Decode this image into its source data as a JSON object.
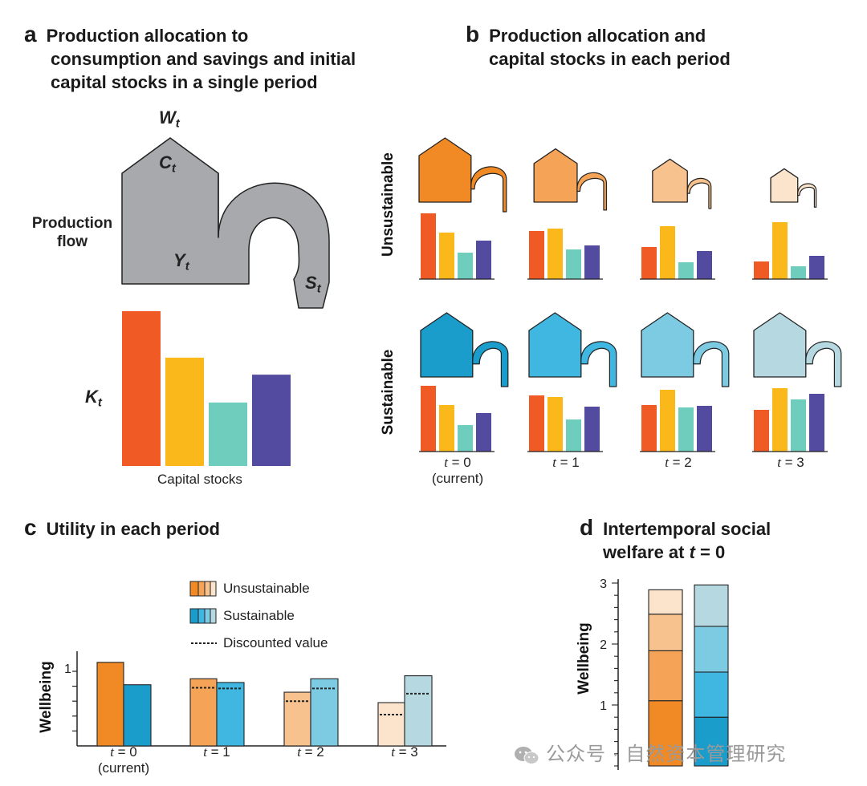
{
  "panel_a": {
    "letter": "a",
    "title_lines": [
      "Production allocation to",
      "consumption and savings and initial",
      "capital stocks in a single period"
    ],
    "labels": {
      "wellbeing_symbol": "W",
      "wellbeing_sub": "t",
      "consumption_symbol": "C",
      "consumption_sub": "t",
      "output_symbol": "Y",
      "output_sub": "t",
      "savings_symbol": "S",
      "savings_sub": "t",
      "capital_symbol": "K",
      "capital_sub": "t",
      "production_flow_line1": "Production",
      "production_flow_line2": "flow",
      "capital_stocks": "Capital stocks"
    },
    "capital_bars": [
      1.0,
      0.7,
      0.41,
      0.59
    ],
    "capital_colors": [
      "#F05A24",
      "#FBB81B",
      "#6FCDBD",
      "#524B9F"
    ]
  },
  "panel_b": {
    "letter": "b",
    "title_lines": [
      "Production allocation and",
      "capital stocks in each period"
    ],
    "row_labels": [
      "Unsustainable",
      "Sustainable"
    ],
    "periods": [
      {
        "t": "t",
        "eq": " = 0",
        "note": "(current)"
      },
      {
        "t": "t",
        "eq": " = 1",
        "note": ""
      },
      {
        "t": "t",
        "eq": " = 2",
        "note": ""
      },
      {
        "t": "t",
        "eq": " = 3",
        "note": ""
      }
    ],
    "unsustainable_house_colors": [
      "#F18A25",
      "#F5A356",
      "#F8C28E",
      "#FBE3CC"
    ],
    "sustainable_house_colors": [
      "#1B9DCC",
      "#3FB7E1",
      "#7CCBE3",
      "#B5D8E1"
    ],
    "unsustainable_bars": [
      [
        82,
        58,
        33,
        48
      ],
      [
        60,
        63,
        37,
        42
      ],
      [
        40,
        66,
        21,
        35
      ],
      [
        22,
        71,
        16,
        29
      ]
    ],
    "sustainable_bars": [
      [
        82,
        58,
        33,
        48
      ],
      [
        70,
        68,
        40,
        56
      ],
      [
        58,
        77,
        55,
        57
      ],
      [
        52,
        79,
        65,
        72
      ]
    ],
    "bar_colors": [
      "#F05A24",
      "#FBB81B",
      "#6FCDBD",
      "#524B9F"
    ]
  },
  "panel_c": {
    "letter": "c",
    "title": "Utility in each period",
    "y_label": "Wellbeing",
    "y_tick": "1",
    "legend": [
      "Unsustainable",
      "Sustainable",
      "Discounted value"
    ],
    "periods": [
      {
        "t": "t",
        "eq": " = 0",
        "note": "(current)"
      },
      {
        "t": "t",
        "eq": " = 1",
        "note": ""
      },
      {
        "t": "t",
        "eq": " = 2",
        "note": ""
      },
      {
        "t": "t",
        "eq": " = 3",
        "note": ""
      }
    ],
    "unsustainable_values": [
      1.12,
      0.9,
      0.72,
      0.58
    ],
    "sustainable_values": [
      0.82,
      0.85,
      0.9,
      0.94
    ],
    "unsustainable_discounted": [
      1.12,
      0.78,
      0.6,
      0.42
    ],
    "sustainable_discounted": [
      0.82,
      0.77,
      0.77,
      0.7
    ],
    "unsustainable_colors": [
      "#F18A25",
      "#F5A356",
      "#F8C28E",
      "#FBE3CC"
    ],
    "sustainable_colors": [
      "#1B9DCC",
      "#3FB7E1",
      "#7CCBE3",
      "#B5D8E1"
    ]
  },
  "panel_d": {
    "letter": "d",
    "title_line1": "Intertemporal social",
    "title_line2_prefix": "welfare at ",
    "title_line2_var": "t",
    "title_line2_suffix": " = 0",
    "y_label": "Wellbeing",
    "y_ticks": [
      "1",
      "2",
      "3"
    ],
    "unsustainable_segments": [
      1.07,
      0.82,
      0.6,
      0.4
    ],
    "sustainable_segments": [
      0.8,
      0.74,
      0.75,
      0.68
    ],
    "unsustainable_colors": [
      "#F18A25",
      "#F5A356",
      "#F8C28E",
      "#FBE3CC"
    ],
    "sustainable_colors": [
      "#1B9DCC",
      "#3FB7E1",
      "#7CCBE3",
      "#B5D8E1"
    ]
  },
  "watermark": "公众号 · 自然资本管理研究"
}
